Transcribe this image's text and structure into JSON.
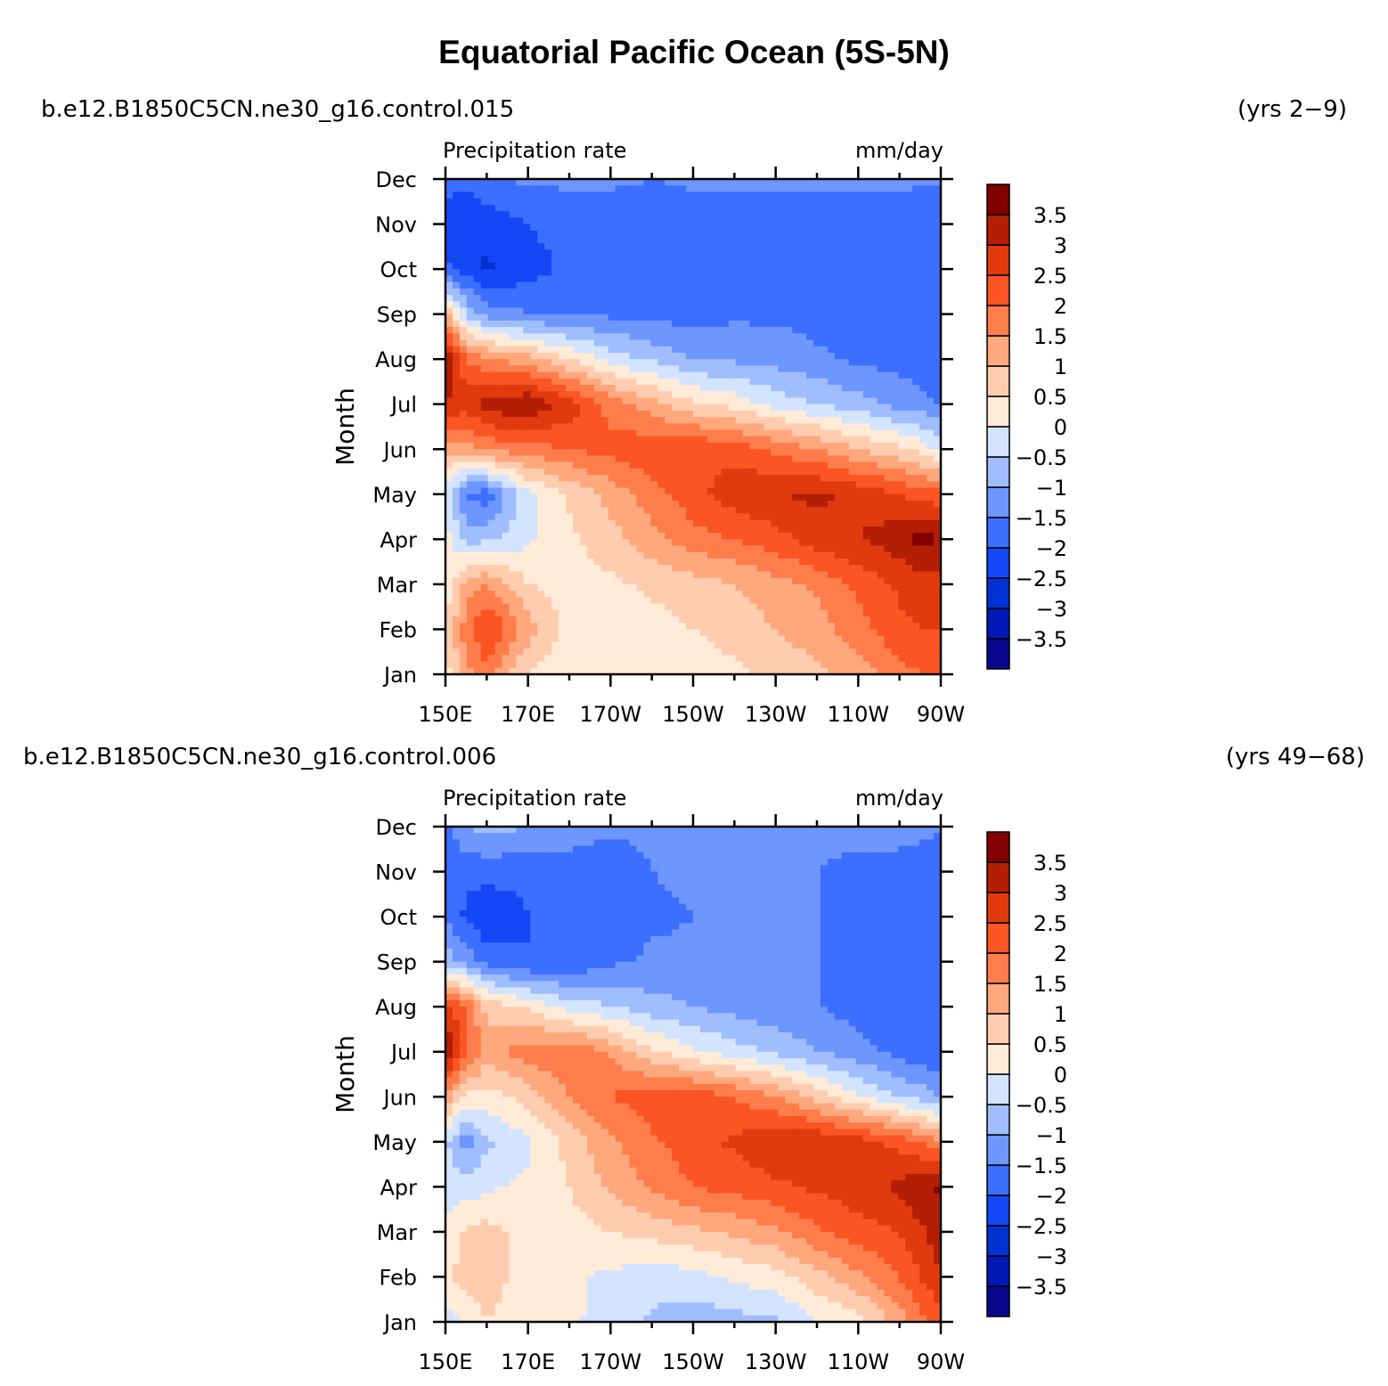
{
  "title": "Equatorial Pacific Ocean (5S-5N)",
  "colorbar": {
    "colors": [
      "#08088c",
      "#0019b4",
      "#0032d2",
      "#1447f5",
      "#3c6eff",
      "#6e96ff",
      "#a0beff",
      "#d2e4ff",
      "#ffebd7",
      "#ffccaf",
      "#ffa87d",
      "#ff7d4b",
      "#fa5523",
      "#e13a0f",
      "#b41e05",
      "#820000"
    ],
    "labels": [
      "−3.5",
      "−3",
      "−2.5",
      "−2",
      "−1.5",
      "−1",
      "−0.5",
      "0",
      "0.5",
      "1",
      "1.5",
      "2",
      "2.5",
      "3",
      "3.5"
    ]
  },
  "chart_data": [
    {
      "type": "heatmap",
      "case": "b.e12.B1850C5CN.ne30_g16.control.015",
      "years": "(yrs 2−9)",
      "left_string": "Precipitation rate",
      "right_string": "mm/day",
      "ylabel": "Month",
      "x_ticks": [
        "150E",
        "170E",
        "170W",
        "150W",
        "130W",
        "110W",
        "90W"
      ],
      "y_ticks": [
        "Jan",
        "Feb",
        "Mar",
        "Apr",
        "May",
        "Jun",
        "Jul",
        "Aug",
        "Sep",
        "Oct",
        "Nov",
        "Dec"
      ],
      "x_lon_range": [
        150,
        270
      ],
      "levels": [
        -3.5,
        -3,
        -2.5,
        -2,
        -1.5,
        -1,
        -0.5,
        0,
        0.5,
        1,
        1.5,
        2,
        2.5,
        3,
        3.5
      ],
      "x_lon": [
        150,
        155,
        160,
        170,
        180,
        190,
        200,
        210,
        220,
        230,
        240,
        250,
        260,
        265,
        270
      ],
      "values": [
        [
          0.3,
          1.3,
          1.8,
          0.4,
          0.2,
          0.3,
          0.2,
          0.2,
          0.4,
          0.6,
          0.9,
          1.2,
          1.8,
          2.0,
          2.2
        ],
        [
          0.5,
          1.8,
          2.6,
          1.3,
          0.2,
          0.3,
          0.3,
          0.5,
          0.7,
          1.0,
          1.3,
          1.8,
          2.4,
          2.5,
          2.5
        ],
        [
          0.1,
          1.2,
          1.5,
          0.5,
          0.3,
          0.4,
          0.6,
          0.8,
          1.0,
          1.3,
          1.6,
          2.1,
          2.6,
          2.7,
          2.8
        ],
        [
          0.2,
          -0.7,
          -0.6,
          -0.1,
          0.4,
          0.8,
          1.3,
          1.8,
          2.0,
          2.3,
          2.8,
          3.0,
          3.3,
          3.7,
          3.5
        ],
        [
          -0.2,
          -1.6,
          -1.8,
          -0.1,
          0.6,
          1.2,
          1.8,
          2.3,
          2.8,
          3.0,
          3.1,
          2.9,
          2.5,
          2.3,
          2.2
        ],
        [
          1.2,
          1.2,
          1.6,
          1.8,
          2.0,
          2.2,
          2.4,
          2.5,
          2.3,
          1.9,
          1.5,
          1.0,
          0.6,
          0.3,
          -0.1
        ],
        [
          3.0,
          2.8,
          3.3,
          3.5,
          2.8,
          1.8,
          1.2,
          0.6,
          0.3,
          -0.2,
          -0.5,
          -0.8,
          -1.2,
          -1.3,
          -1.5
        ],
        [
          3.6,
          2.0,
          1.6,
          1.2,
          0.5,
          -0.2,
          -0.6,
          -1.0,
          -1.1,
          -1.2,
          -1.4,
          -1.6,
          -1.7,
          -1.8,
          -2.0
        ],
        [
          1.2,
          -0.6,
          -1.2,
          -1.5,
          -1.6,
          -1.6,
          -1.7,
          -1.7,
          -1.6,
          -1.6,
          -1.7,
          -1.8,
          -1.9,
          -1.9,
          -2.0
        ],
        [
          -1.9,
          -2.2,
          -2.6,
          -2.2,
          -1.9,
          -1.8,
          -1.8,
          -1.8,
          -1.8,
          -1.8,
          -1.8,
          -1.8,
          -1.9,
          -1.9,
          -2.0
        ],
        [
          -2.3,
          -2.4,
          -2.3,
          -2.0,
          -1.8,
          -1.8,
          -1.8,
          -1.8,
          -1.8,
          -1.8,
          -1.8,
          -1.8,
          -1.8,
          -1.9,
          -2.0
        ],
        [
          -1.8,
          -1.9,
          -1.6,
          -1.4,
          -1.4,
          -1.4,
          -1.5,
          -1.4,
          -1.4,
          -1.4,
          -1.4,
          -1.4,
          -1.4,
          -1.4,
          -1.4
        ]
      ]
    },
    {
      "type": "heatmap",
      "case": "b.e12.B1850C5CN.ne30_g16.control.006",
      "years": "(yrs 49−68)",
      "left_string": "Precipitation rate",
      "right_string": "mm/day",
      "ylabel": "Month",
      "x_ticks": [
        "150E",
        "170E",
        "170W",
        "150W",
        "130W",
        "110W",
        "90W"
      ],
      "y_ticks": [
        "Jan",
        "Feb",
        "Mar",
        "Apr",
        "May",
        "Jun",
        "Jul",
        "Aug",
        "Sep",
        "Oct",
        "Nov",
        "Dec"
      ],
      "x_lon_range": [
        150,
        270
      ],
      "levels": [
        -3.5,
        -3,
        -2.5,
        -2,
        -1.5,
        -1,
        -0.5,
        0,
        0.5,
        1,
        1.5,
        2,
        2.5,
        3,
        3.5
      ],
      "x_lon": [
        150,
        155,
        160,
        170,
        180,
        190,
        200,
        210,
        220,
        230,
        240,
        250,
        260,
        265,
        270
      ],
      "values": [
        [
          -0.2,
          0.0,
          0.5,
          0.2,
          0.1,
          -0.2,
          -0.6,
          -0.8,
          -0.7,
          -0.6,
          0.0,
          0.3,
          1.2,
          1.8,
          2.2
        ],
        [
          0.3,
          0.8,
          0.8,
          0.2,
          0.1,
          -0.1,
          -0.3,
          -0.2,
          0.1,
          0.3,
          0.8,
          1.4,
          2.0,
          2.5,
          3.0
        ],
        [
          0.1,
          0.6,
          0.7,
          0.3,
          0.3,
          0.5,
          0.7,
          0.9,
          1.1,
          1.4,
          1.9,
          2.3,
          2.5,
          2.9,
          3.3
        ],
        [
          -0.2,
          -0.3,
          -0.1,
          0.1,
          0.5,
          1.1,
          1.6,
          2.0,
          2.2,
          2.4,
          2.6,
          2.8,
          3.1,
          3.4,
          3.6
        ],
        [
          -0.4,
          -1.3,
          -0.6,
          -0.1,
          0.7,
          1.4,
          1.9,
          2.3,
          2.6,
          2.9,
          3.0,
          2.7,
          2.3,
          2.0,
          1.6
        ],
        [
          1.3,
          0.4,
          0.3,
          0.7,
          1.5,
          2.0,
          2.3,
          2.3,
          2.0,
          1.5,
          0.8,
          0.1,
          -0.5,
          -0.7,
          -1.0
        ],
        [
          3.6,
          2.2,
          1.2,
          1.8,
          1.9,
          1.4,
          0.6,
          0.1,
          -0.3,
          -0.6,
          -1.0,
          -1.3,
          -1.7,
          -1.9,
          -2.0
        ],
        [
          2.6,
          2.0,
          0.8,
          0.4,
          -0.2,
          -0.5,
          -0.8,
          -1.0,
          -1.2,
          -1.4,
          -1.5,
          -1.7,
          -1.9,
          -2.0,
          -2.0
        ],
        [
          -0.7,
          -1.2,
          -1.7,
          -2.0,
          -2.0,
          -1.6,
          -1.4,
          -1.4,
          -1.4,
          -1.4,
          -1.5,
          -1.8,
          -2.0,
          -2.0,
          -2.0
        ],
        [
          -1.5,
          -2.1,
          -2.4,
          -2.0,
          -1.9,
          -1.9,
          -1.6,
          -1.5,
          -1.4,
          -1.4,
          -1.5,
          -1.8,
          -2.0,
          -2.0,
          -2.0
        ],
        [
          -1.9,
          -1.9,
          -1.8,
          -1.9,
          -1.8,
          -1.8,
          -1.5,
          -1.4,
          -1.4,
          -1.4,
          -1.5,
          -1.7,
          -1.8,
          -1.9,
          -2.0
        ],
        [
          -1.6,
          -1.0,
          -0.8,
          -1.0,
          -1.2,
          -1.4,
          -1.4,
          -1.4,
          -1.4,
          -1.4,
          -1.3,
          -1.3,
          -1.2,
          -1.3,
          -1.4
        ]
      ]
    }
  ]
}
